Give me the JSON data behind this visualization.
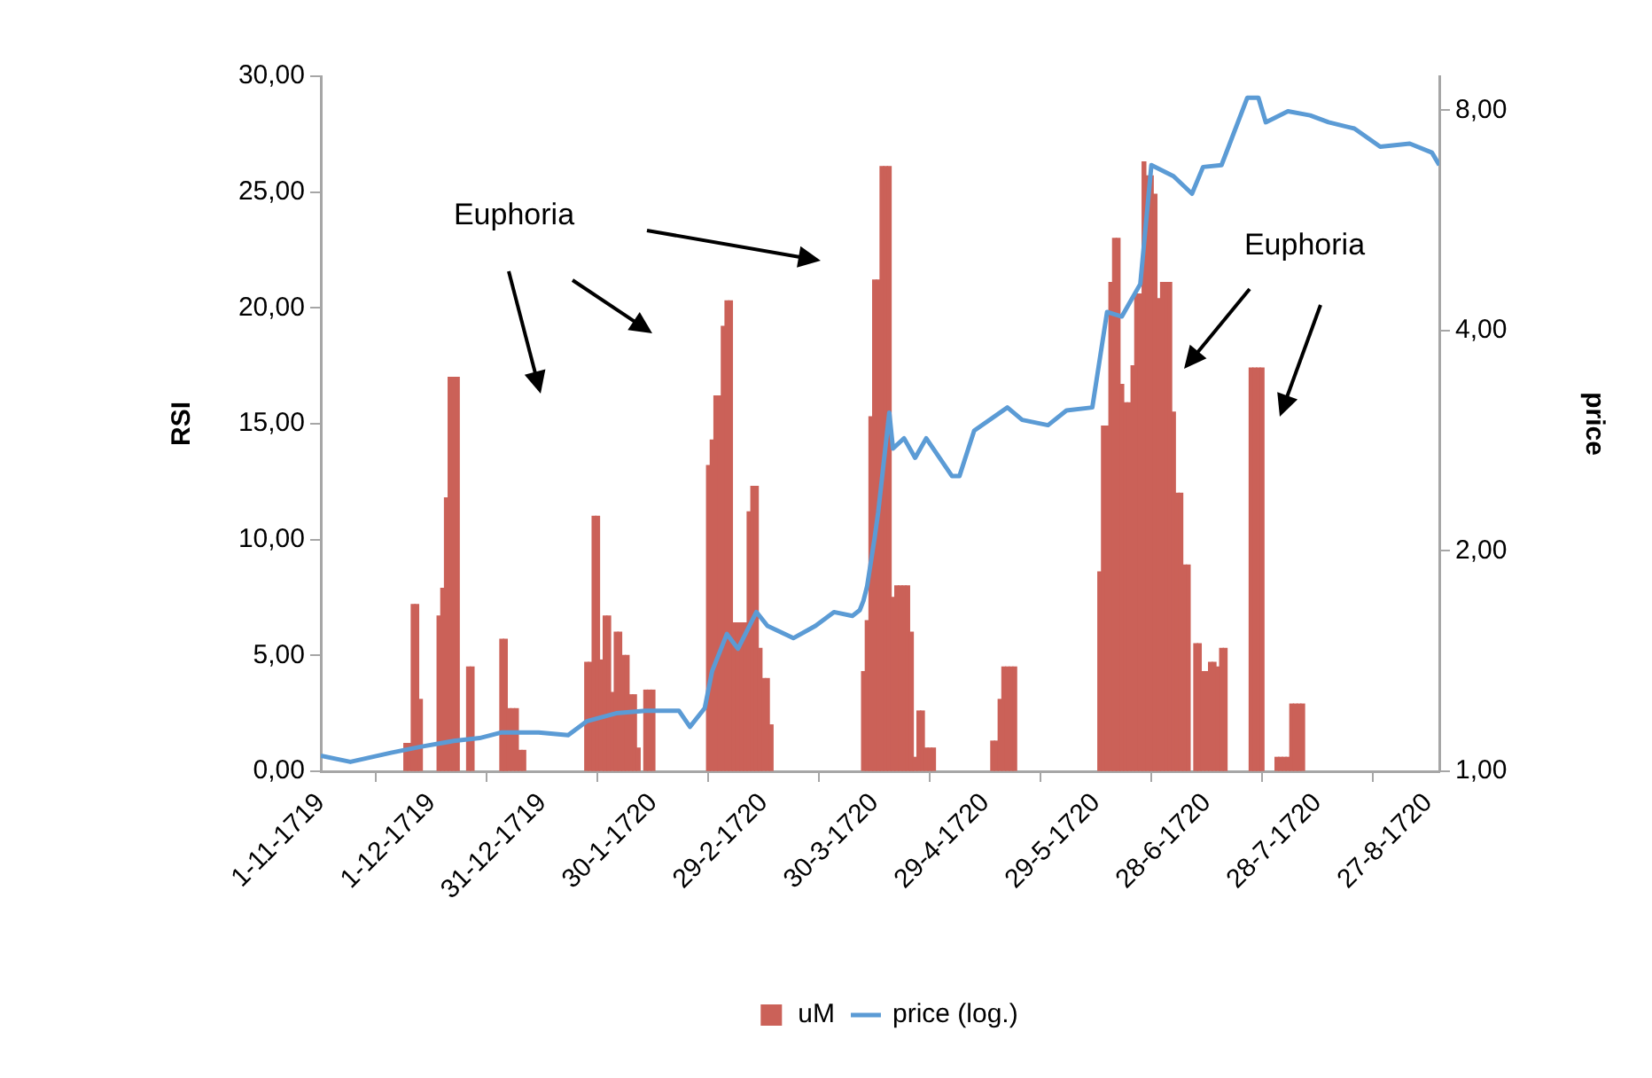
{
  "chart_data": {
    "type": "bar",
    "ylabel": "RSI",
    "y2label": "price",
    "log": "y2",
    "grid": false,
    "legend": "bottom",
    "annotations": [
      "Euphoria",
      "Euphoria"
    ],
    "xlim": [
      "1719-11-01",
      "1720-08-30"
    ],
    "xticks": [
      {
        "value": "1719-11-01",
        "label": "1-11-1719"
      },
      {
        "value": "1719-12-01",
        "label": "1-12-1719"
      },
      {
        "value": "1719-12-31",
        "label": "31-12-1719"
      },
      {
        "value": "1720-01-30",
        "label": "30-1-1720"
      },
      {
        "value": "1720-02-29",
        "label": "29-2-1720"
      },
      {
        "value": "1720-03-30",
        "label": "30-3-1720"
      },
      {
        "value": "1720-04-29",
        "label": "29-4-1720"
      },
      {
        "value": "1720-05-29",
        "label": "29-5-1720"
      },
      {
        "value": "1720-06-28",
        "label": "28-6-1720"
      },
      {
        "value": "1720-07-28",
        "label": "28-7-1720"
      },
      {
        "value": "1720-08-27",
        "label": "27-8-1720"
      }
    ],
    "ylim": [
      0,
      30
    ],
    "yticks": [
      {
        "value": 0,
        "label": "0,00"
      },
      {
        "value": 5,
        "label": "5,00"
      },
      {
        "value": 10,
        "label": "10,00"
      },
      {
        "value": 15,
        "label": "15,00"
      },
      {
        "value": 20,
        "label": "20,00"
      },
      {
        "value": 25,
        "label": "25,00"
      },
      {
        "value": 30,
        "label": "30,00"
      }
    ],
    "y2lim": [
      1,
      8.9
    ],
    "y2ticks": [
      {
        "value": 1,
        "label": "1,00"
      },
      {
        "value": 2,
        "label": "2,00"
      },
      {
        "value": 4,
        "label": "4,00"
      },
      {
        "value": 8,
        "label": "8,00"
      }
    ],
    "series": [
      {
        "name": "uM",
        "color": "#cb6158",
        "x": [
          "1719-11-24",
          "1719-11-25",
          "1719-11-26",
          "1719-11-27",
          "1719-11-28",
          "1719-12-03",
          "1719-12-04",
          "1719-12-05",
          "1719-12-06",
          "1719-12-07",
          "1719-12-08",
          "1719-12-11",
          "1719-12-12",
          "1719-12-20",
          "1719-12-21",
          "1719-12-22",
          "1719-12-23",
          "1719-12-24",
          "1719-12-25",
          "1719-12-26",
          "1720-01-12",
          "1720-01-13",
          "1720-01-14",
          "1720-01-15",
          "1720-01-16",
          "1720-01-17",
          "1720-01-18",
          "1720-01-19",
          "1720-01-20",
          "1720-01-21",
          "1720-01-22",
          "1720-01-23",
          "1720-01-24",
          "1720-01-25",
          "1720-01-26",
          "1720-01-28",
          "1720-01-29",
          "1720-01-30",
          "1720-02-14",
          "1720-02-15",
          "1720-02-16",
          "1720-02-17",
          "1720-02-18",
          "1720-02-19",
          "1720-02-20",
          "1720-02-21",
          "1720-02-22",
          "1720-02-23",
          "1720-02-24",
          "1720-02-25",
          "1720-02-26",
          "1720-02-27",
          "1720-02-28",
          "1720-02-29",
          "1720-03-01",
          "1720-03-02",
          "1720-03-27",
          "1720-03-28",
          "1720-03-29",
          "1720-03-30",
          "1720-03-31",
          "1720-04-01",
          "1720-04-02",
          "1720-04-03",
          "1720-04-04",
          "1720-04-05",
          "1720-04-06",
          "1720-04-07",
          "1720-04-08",
          "1720-04-09",
          "1720-04-10",
          "1720-04-11",
          "1720-04-12",
          "1720-04-13",
          "1720-04-14",
          "1720-04-15",
          "1720-05-01",
          "1720-05-02",
          "1720-05-03",
          "1720-05-04",
          "1720-05-05",
          "1720-05-06",
          "1720-05-07",
          "1720-05-30",
          "1720-05-31",
          "1720-06-01",
          "1720-06-02",
          "1720-06-03",
          "1720-06-04",
          "1720-06-05",
          "1720-06-06",
          "1720-06-07",
          "1720-06-08",
          "1720-06-09",
          "1720-06-10",
          "1720-06-11",
          "1720-06-12",
          "1720-06-13",
          "1720-06-14",
          "1720-06-15",
          "1720-06-16",
          "1720-06-17",
          "1720-06-18",
          "1720-06-19",
          "1720-06-20",
          "1720-06-21",
          "1720-06-22",
          "1720-06-23",
          "1720-06-25",
          "1720-06-26",
          "1720-06-27",
          "1720-06-28",
          "1720-06-29",
          "1720-06-30",
          "1720-07-01",
          "1720-07-02",
          "1720-07-03",
          "1720-07-10",
          "1720-07-11",
          "1720-07-12",
          "1720-07-13",
          "1720-07-17",
          "1720-07-18",
          "1720-07-19",
          "1720-07-20",
          "1720-07-21",
          "1720-07-22",
          "1720-07-23",
          "1720-07-24"
        ],
        "values": [
          1.2,
          1.2,
          7.2,
          7.2,
          3.1,
          6.7,
          7.9,
          11.8,
          17.0,
          17.0,
          17.0,
          4.5,
          4.5,
          5.7,
          5.7,
          2.7,
          2.7,
          2.7,
          0.9,
          0.9,
          4.7,
          4.7,
          11.0,
          11.0,
          4.8,
          6.7,
          6.7,
          3.4,
          6.0,
          6.0,
          5.0,
          5.0,
          3.3,
          3.3,
          1.0,
          3.5,
          3.5,
          3.5,
          13.2,
          14.3,
          16.2,
          16.2,
          19.2,
          20.3,
          20.3,
          6.4,
          6.4,
          6.4,
          6.4,
          11.2,
          12.3,
          12.3,
          5.3,
          4.0,
          4.0,
          2.0,
          4.3,
          6.5,
          15.3,
          21.2,
          21.2,
          26.1,
          26.1,
          26.1,
          7.5,
          8.0,
          8.0,
          8.0,
          8.0,
          6.0,
          0.6,
          2.6,
          2.6,
          1.0,
          1.0,
          1.0,
          1.3,
          1.3,
          3.1,
          4.5,
          4.5,
          4.5,
          4.5,
          8.6,
          14.9,
          14.9,
          21.1,
          23.0,
          23.0,
          16.7,
          15.9,
          15.9,
          17.5,
          20.6,
          20.6,
          26.3,
          25.7,
          25.7,
          24.9,
          20.4,
          21.1,
          21.1,
          21.1,
          15.5,
          12.0,
          12.0,
          8.9,
          8.9,
          5.5,
          5.5,
          4.3,
          4.3,
          4.7,
          4.7,
          4.5,
          5.3,
          5.3,
          17.4,
          17.4,
          17.4,
          17.4,
          0.6,
          0.6,
          0.6,
          0.6,
          2.9,
          2.9,
          2.9,
          2.9
        ]
      },
      {
        "name": "price (log.)",
        "type": "line",
        "axis": "y2",
        "color": "#5b9bd5",
        "x": [
          "1719-11-01",
          "1719-11-09",
          "1719-11-20",
          "1719-11-28",
          "1719-12-07",
          "1719-12-14",
          "1719-12-20",
          "1719-12-30",
          "1720-01-07",
          "1720-01-12",
          "1720-01-20",
          "1720-01-28",
          "1720-02-06",
          "1720-02-09",
          "1720-02-13",
          "1720-02-15",
          "1720-02-19",
          "1720-02-22",
          "1720-02-27",
          "1720-03-01",
          "1720-03-08",
          "1720-03-14",
          "1720-03-19",
          "1720-03-24",
          "1720-03-26",
          "1720-03-27",
          "1720-03-28",
          "1720-03-30",
          "1720-03-31",
          "1720-04-03",
          "1720-04-04",
          "1720-04-07",
          "1720-04-10",
          "1720-04-13",
          "1720-04-20",
          "1720-04-22",
          "1720-04-26",
          "1720-05-05",
          "1720-05-09",
          "1720-05-16",
          "1720-05-21",
          "1720-05-28",
          "1720-06-01",
          "1720-06-05",
          "1720-06-10",
          "1720-06-13",
          "1720-06-19",
          "1720-06-24",
          "1720-06-27",
          "1720-07-02",
          "1720-07-09",
          "1720-07-12",
          "1720-07-14",
          "1720-07-20",
          "1720-07-26",
          "1720-07-31",
          "1720-08-07",
          "1720-08-14",
          "1720-08-22",
          "1720-08-28",
          "1720-08-30"
        ],
        "values": [
          1.05,
          1.03,
          1.06,
          1.08,
          1.1,
          1.11,
          1.13,
          1.13,
          1.12,
          1.17,
          1.2,
          1.21,
          1.21,
          1.15,
          1.22,
          1.37,
          1.54,
          1.47,
          1.65,
          1.58,
          1.52,
          1.58,
          1.65,
          1.63,
          1.66,
          1.71,
          1.79,
          2.08,
          2.26,
          3.09,
          2.76,
          2.85,
          2.68,
          2.85,
          2.53,
          2.53,
          2.92,
          3.14,
          3.02,
          2.97,
          3.11,
          3.14,
          4.24,
          4.18,
          4.63,
          6.73,
          6.5,
          6.15,
          6.69,
          6.73,
          8.32,
          8.32,
          7.7,
          7.97,
          7.87,
          7.7,
          7.55,
          7.13,
          7.2,
          7.0,
          6.73
        ]
      }
    ]
  }
}
